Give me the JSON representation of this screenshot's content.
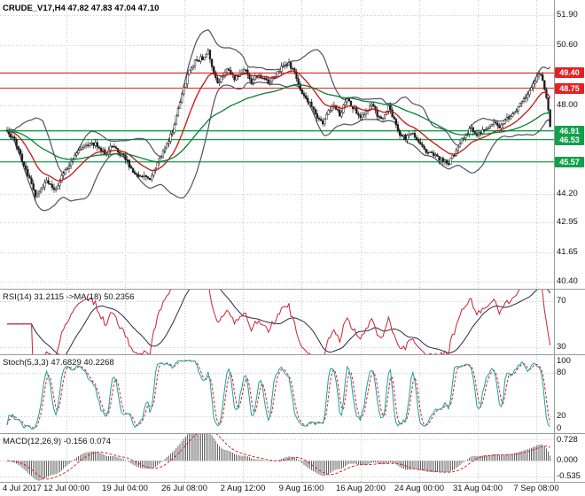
{
  "window": {
    "title_line": "CRUDE_V17,H4 47.82 47.83 47.04 47.10",
    "background": "#ffffff"
  },
  "colors": {
    "grid": "#c9c9c9",
    "separator": "#9a9a9a",
    "candle": "#1a1a1a",
    "bollinger": "#50506b",
    "ma_fast": "#cc1111",
    "ma_slow": "#067f36",
    "level_red": "#e02222",
    "level_green": "#12a04a",
    "rsi_line": "#cc2233",
    "rsi_ma": "#28284f",
    "stoch_main": "#17a2a2",
    "stoch_signal": "#dd2222",
    "macd_hist": "#3d3d3d",
    "macd_signal": "#dd2222",
    "axis_text": "#111111"
  },
  "indicator_labels": {
    "rsi": "RSI(14) 31.2115  ->MA(18) 50.2356",
    "stoch": "Stoch(5,3,3) 47.6829 40.2268",
    "macd": "MACD(12,26,9) -0.156 0.074"
  },
  "chart_data": {
    "type": "candlestick",
    "symbol": "CRUDE_V17",
    "timeframe": "H4",
    "title": "CRUDE_V17,H4 47.82 47.83 47.04 47.10",
    "x_axis_labels": [
      "4 Jul 2017",
      "12 Jul 00:00",
      "19 Jul 04:00",
      "26 Jul 08:00",
      "2 Aug 12:00",
      "9 Aug 16:00",
      "16 Aug 20:00",
      "24 Aug 00:00",
      "31 Aug 04:00",
      "7 Sep 08:00"
    ],
    "main_panel": {
      "ylim": [
        40.1,
        52.55
      ],
      "y_ticks": [
        "51.90",
        "50.60",
        "48.00",
        "44.20",
        "42.95",
        "41.65",
        "40.40"
      ],
      "level_lines": [
        {
          "value": 49.4,
          "label": "49.40",
          "color_key": "level_red"
        },
        {
          "value": 48.75,
          "label": "48.75",
          "color_key": "level_red"
        },
        {
          "value": 46.91,
          "label": "46.91",
          "color_key": "level_green"
        },
        {
          "value": 46.53,
          "label": "46.53",
          "color_key": "level_green"
        },
        {
          "value": 45.57,
          "label": "45.57",
          "color_key": "level_green"
        }
      ],
      "bar_count": 290,
      "last_candle": {
        "open": 47.82,
        "high": 47.83,
        "low": 47.04,
        "close": 47.1
      },
      "overlays": {
        "bollinger": {
          "period": 20,
          "deviation": 2
        },
        "ma_fast": {
          "period": 18,
          "method": "ema"
        },
        "ma_slow": {
          "period": 65,
          "method": "ema"
        }
      },
      "price_path_waypoints": [
        [
          0,
          46.9
        ],
        [
          4,
          46.45
        ],
        [
          8,
          45.6
        ],
        [
          12,
          44.8
        ],
        [
          15,
          44.15
        ],
        [
          18,
          44.45
        ],
        [
          21,
          44.75
        ],
        [
          25,
          44.3
        ],
        [
          29,
          44.9
        ],
        [
          33,
          45.45
        ],
        [
          37,
          45.95
        ],
        [
          42,
          46.2
        ],
        [
          47,
          46.4
        ],
        [
          52,
          45.9
        ],
        [
          56,
          46.25
        ],
        [
          60,
          45.95
        ],
        [
          63,
          45.7
        ],
        [
          67,
          45.15
        ],
        [
          72,
          44.95
        ],
        [
          76,
          44.8
        ],
        [
          80,
          45.5
        ],
        [
          84,
          46.2
        ],
        [
          88,
          46.9
        ],
        [
          92,
          48.2
        ],
        [
          96,
          49.3
        ],
        [
          100,
          49.9
        ],
        [
          104,
          50.05
        ],
        [
          107,
          50.35
        ],
        [
          109,
          49.7
        ],
        [
          112,
          48.95
        ],
        [
          115,
          49.3
        ],
        [
          118,
          49.6
        ],
        [
          121,
          49.15
        ],
        [
          124,
          49.35
        ],
        [
          127,
          49.5
        ],
        [
          130,
          49.05
        ],
        [
          133,
          49.3
        ],
        [
          136,
          49.15
        ],
        [
          139,
          48.95
        ],
        [
          143,
          49.35
        ],
        [
          147,
          49.75
        ],
        [
          150,
          49.85
        ],
        [
          153,
          49.35
        ],
        [
          157,
          48.6
        ],
        [
          161,
          48.1
        ],
        [
          164,
          47.6
        ],
        [
          168,
          47.15
        ],
        [
          171,
          47.7
        ],
        [
          174,
          47.95
        ],
        [
          177,
          47.6
        ],
        [
          181,
          48.25
        ],
        [
          184,
          47.95
        ],
        [
          188,
          47.55
        ],
        [
          191,
          47.8
        ],
        [
          194,
          48.0
        ],
        [
          197,
          47.6
        ],
        [
          200,
          47.45
        ],
        [
          203,
          47.9
        ],
        [
          206,
          47.35
        ],
        [
          209,
          46.8
        ],
        [
          212,
          46.6
        ],
        [
          215,
          46.85
        ],
        [
          218,
          46.45
        ],
        [
          221,
          46.2
        ],
        [
          224,
          45.95
        ],
        [
          228,
          45.8
        ],
        [
          231,
          45.7
        ],
        [
          235,
          45.5
        ],
        [
          238,
          45.9
        ],
        [
          241,
          46.35
        ],
        [
          244,
          46.75
        ],
        [
          247,
          47.0
        ],
        [
          250,
          46.75
        ],
        [
          253,
          46.95
        ],
        [
          256,
          47.1
        ],
        [
          259,
          47.3
        ],
        [
          262,
          47.1
        ],
        [
          265,
          47.35
        ],
        [
          268,
          47.6
        ],
        [
          271,
          47.8
        ],
        [
          274,
          48.15
        ],
        [
          277,
          48.55
        ],
        [
          280,
          49.0
        ],
        [
          282,
          49.25
        ],
        [
          284,
          49.35
        ],
        [
          286,
          48.7
        ],
        [
          288,
          47.9
        ],
        [
          289,
          47.1
        ]
      ]
    },
    "rsi_panel": {
      "params": "RSI(14)",
      "value": 31.2115,
      "ma_params": "MA(18)",
      "ma_value": 50.2356,
      "ylim": [
        23.5,
        80
      ],
      "y_ticks": [
        "70",
        "30"
      ],
      "tick_values": [
        70,
        30
      ],
      "grid_values": [
        70,
        30
      ]
    },
    "stoch_panel": {
      "params": "Stoch(5,3,3)",
      "k": 47.6829,
      "d": 40.2268,
      "ylim": [
        -3,
        104
      ],
      "y_ticks": [
        "100",
        "80",
        "20",
        "0"
      ],
      "tick_values": [
        100,
        80,
        20,
        0
      ],
      "grid_values": [
        80,
        20
      ]
    },
    "macd_panel": {
      "params": "MACD(12,26,9)",
      "macd": -0.156,
      "signal": 0.074,
      "ylim": [
        -0.72,
        0.92
      ],
      "y_ticks": [
        "0.728",
        "0.000",
        "-0.535"
      ],
      "tick_values": [
        0.728,
        0,
        -0.535
      ],
      "grid_values": [
        0.728,
        0,
        -0.535
      ]
    }
  }
}
